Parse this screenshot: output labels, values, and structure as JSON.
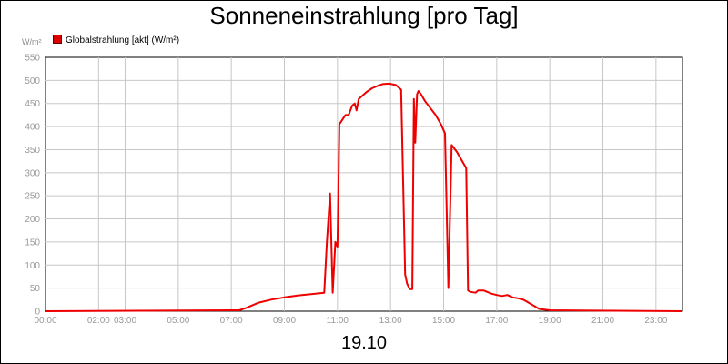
{
  "chart_data": {
    "type": "line",
    "title": "Sonneneinstrahlung [pro Tag]",
    "ylabel": "W/m²",
    "xlabel": "19.10",
    "ylim": [
      0,
      550
    ],
    "yticks": [
      0,
      50,
      100,
      150,
      200,
      250,
      300,
      350,
      400,
      450,
      500,
      550
    ],
    "xlim": [
      0,
      24
    ],
    "xticks": [
      {
        "pos": 0,
        "label": "00:00"
      },
      {
        "pos": 2,
        "label": "02:00"
      },
      {
        "pos": 3,
        "label": "03:00"
      },
      {
        "pos": 5,
        "label": "05:00"
      },
      {
        "pos": 7,
        "label": "07:00"
      },
      {
        "pos": 9,
        "label": "09:00"
      },
      {
        "pos": 11,
        "label": "11:00"
      },
      {
        "pos": 13,
        "label": "13:00"
      },
      {
        "pos": 15,
        "label": "15:00"
      },
      {
        "pos": 17,
        "label": "17:00"
      },
      {
        "pos": 19,
        "label": "19:00"
      },
      {
        "pos": 21,
        "label": "21:00"
      },
      {
        "pos": 23,
        "label": "23:00"
      }
    ],
    "grid": true,
    "legend_position": "top-left",
    "series": [
      {
        "name": "Globalstrahlung [akt] (W/m²)",
        "color": "#ee0000",
        "x": [
          0,
          7.3,
          7.6,
          8.0,
          8.5,
          9.0,
          9.5,
          10.0,
          10.5,
          10.6,
          10.72,
          10.82,
          10.92,
          11.0,
          11.03,
          11.07,
          11.3,
          11.42,
          11.55,
          11.65,
          11.72,
          11.8,
          11.9,
          12.1,
          12.3,
          12.5,
          12.7,
          12.95,
          13.2,
          13.4,
          13.55,
          13.62,
          13.72,
          13.82,
          13.88,
          13.93,
          14.0,
          14.05,
          14.15,
          14.3,
          14.5,
          14.7,
          14.9,
          15.05,
          15.18,
          15.3,
          15.5,
          15.85,
          15.92,
          16.0,
          16.2,
          16.3,
          16.5,
          16.8,
          17.0,
          17.2,
          17.4,
          17.6,
          17.8,
          18.0,
          18.3,
          18.6,
          19.0,
          24
        ],
        "y": [
          0,
          2,
          8,
          18,
          25,
          30,
          34,
          37,
          40,
          150,
          255,
          40,
          150,
          140,
          240,
          405,
          425,
          425,
          445,
          450,
          435,
          460,
          465,
          475,
          483,
          488,
          492,
          493,
          490,
          480,
          80,
          60,
          48,
          48,
          460,
          365,
          470,
          477,
          470,
          455,
          440,
          425,
          405,
          385,
          50,
          360,
          345,
          310,
          45,
          42,
          40,
          45,
          45,
          38,
          35,
          33,
          35,
          30,
          28,
          25,
          15,
          5,
          2,
          0
        ]
      }
    ]
  }
}
